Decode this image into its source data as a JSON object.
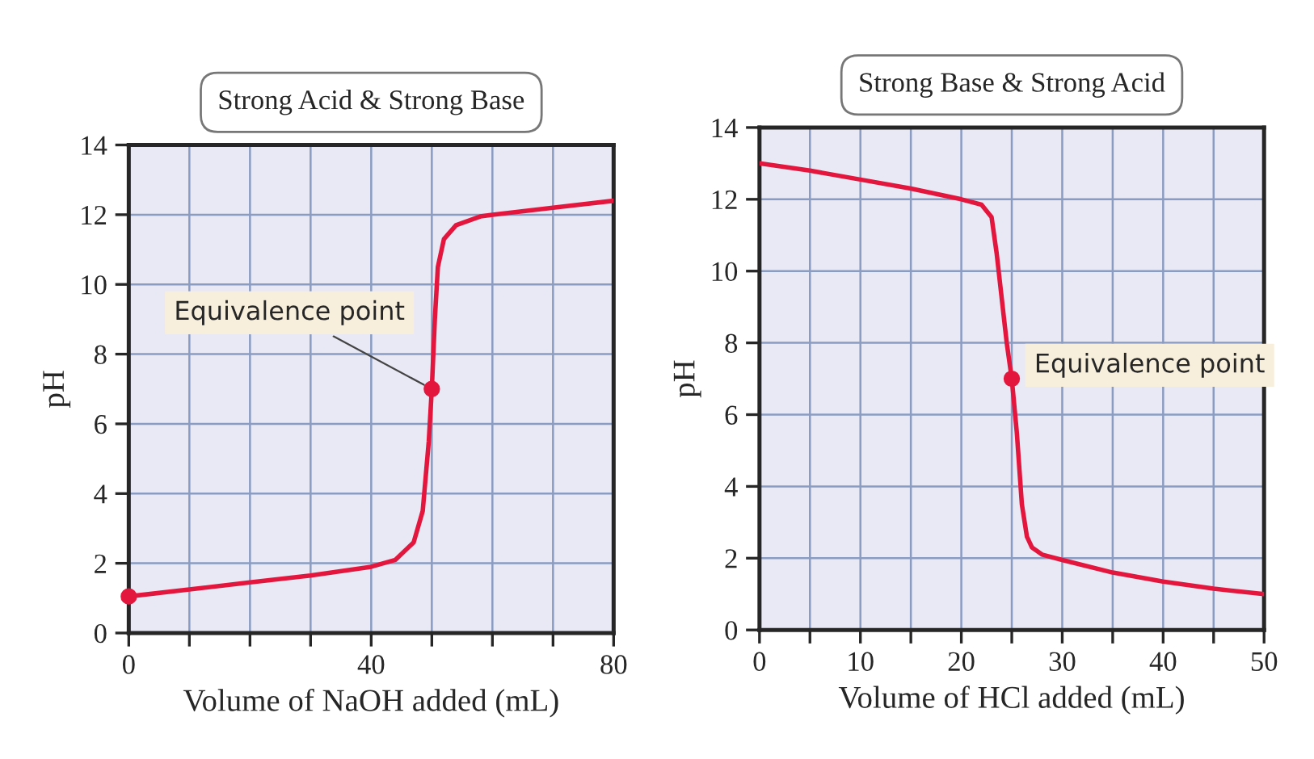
{
  "chart_data": [
    {
      "type": "line",
      "title": "Strong Acid & Strong Base",
      "xlabel": "Volume of NaOH added (mL)",
      "ylabel": "pH",
      "xlim": [
        0,
        80
      ],
      "xticks": [
        0,
        {
          "value": 10,
          "label": null
        },
        {
          "value": 20,
          "label": null
        },
        {
          "value": 30,
          "label": null
        },
        40,
        {
          "value": 50,
          "label": null
        },
        {
          "value": 60,
          "label": null
        },
        {
          "value": 70,
          "label": null
        },
        80
      ],
      "ylim": [
        0,
        14
      ],
      "yticks": [
        0,
        2,
        4,
        6,
        8,
        10,
        12,
        14
      ],
      "grid": true,
      "line_style": "solid",
      "series": [
        {
          "color": "#e3173e",
          "x": [
            0,
            10,
            20,
            30,
            40,
            44,
            47,
            48.5,
            49.5,
            50,
            50.5,
            51,
            52,
            54,
            58,
            60,
            70,
            80
          ],
          "values": [
            1.05,
            1.25,
            1.45,
            1.65,
            1.9,
            2.1,
            2.6,
            3.5,
            5.5,
            7,
            9,
            10.5,
            11.3,
            11.7,
            11.95,
            12.0,
            12.2,
            12.4
          ]
        },
        {
          "type": "scatter",
          "marker": "circle",
          "color": "#e3173e",
          "x": [
            0,
            50
          ],
          "values": [
            1.05,
            7
          ]
        }
      ],
      "annotations": [
        {
          "text": "Equivalence point",
          "x": 50,
          "y": 7
        }
      ]
    },
    {
      "type": "line",
      "title": "Strong Base & Strong Acid",
      "xlabel": "Volume of HCl added (mL)",
      "ylabel": "pH",
      "xlim": [
        0,
        50
      ],
      "xticks": [
        0,
        {
          "value": 5,
          "label": null
        },
        10,
        {
          "value": 15,
          "label": null
        },
        20,
        {
          "value": 25,
          "label": null
        },
        30,
        {
          "value": 35,
          "label": null
        },
        40,
        {
          "value": 45,
          "label": null
        },
        50
      ],
      "ylim": [
        0,
        14
      ],
      "yticks": [
        0,
        2,
        4,
        6,
        8,
        10,
        12,
        14
      ],
      "grid": true,
      "line_style": "solid",
      "series": [
        {
          "color": "#e3173e",
          "x": [
            0,
            5,
            10,
            15,
            20,
            22,
            23,
            23.5,
            24.5,
            25,
            25.5,
            26,
            26.5,
            27,
            28,
            30,
            35,
            40,
            45,
            50
          ],
          "values": [
            13,
            12.8,
            12.55,
            12.3,
            12.0,
            11.85,
            11.5,
            10.5,
            8,
            7,
            5.5,
            3.5,
            2.6,
            2.3,
            2.1,
            1.95,
            1.6,
            1.35,
            1.15,
            1.0
          ]
        },
        {
          "type": "scatter",
          "marker": "circle",
          "color": "#e3173e",
          "x": [
            25
          ],
          "values": [
            7
          ]
        }
      ],
      "annotations": [
        {
          "text": "Equivalence point",
          "x": 25,
          "y": 7
        }
      ]
    }
  ]
}
